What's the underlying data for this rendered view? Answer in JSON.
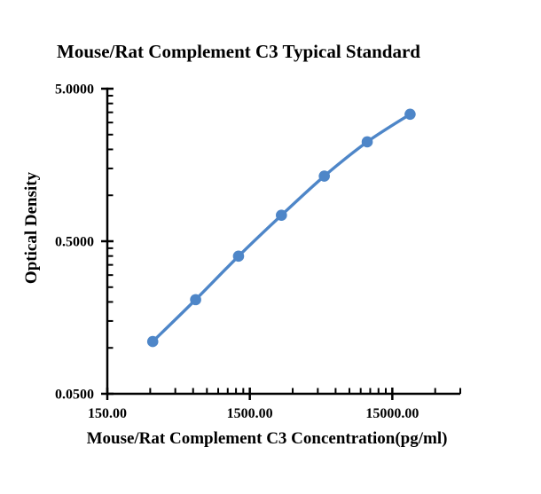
{
  "chart_data": {
    "type": "scatter",
    "title": "Mouse/Rat Complement C3 Typical Standard",
    "xlabel": "Mouse/Rat Complement C3 Concentration(pg/ml)",
    "ylabel": "Optical Density",
    "x_scale": "log",
    "y_scale": "log",
    "x": [
      312.5,
      625,
      1250,
      2500,
      5000,
      10000,
      20000
    ],
    "y": [
      0.11,
      0.207,
      0.399,
      0.74,
      1.337,
      2.24,
      3.4
    ],
    "xlim": [
      150,
      45000
    ],
    "ylim": [
      0.05,
      5.0
    ],
    "x_tick_values": [
      150,
      1500,
      15000
    ],
    "x_tick_labels": [
      "150.00",
      "1500.00",
      "15000.00"
    ],
    "y_tick_values": [
      5.0,
      0.5,
      0.05
    ],
    "y_tick_labels": [
      "5.0000",
      "0.5000",
      "0.0500"
    ],
    "minor_tick_multiples": [
      2,
      3,
      4,
      5,
      6,
      7,
      8,
      9
    ],
    "grid": false,
    "legend": false,
    "smooth_line": true,
    "marker": "circle",
    "line_color": "#4E86C8",
    "marker_color": "#4E86C8",
    "axis_color": "#000000",
    "background_color": "#FFFFFF"
  }
}
